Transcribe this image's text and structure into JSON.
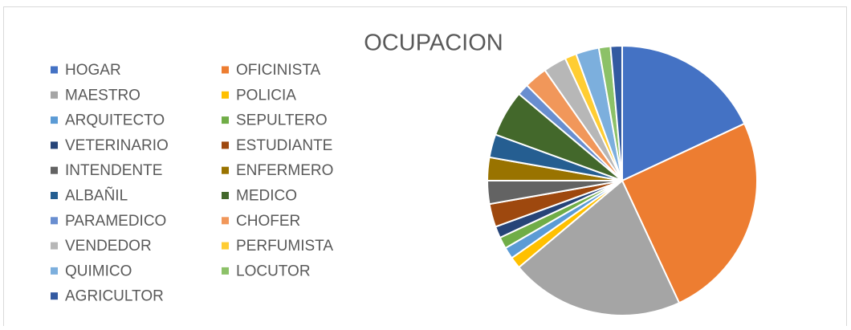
{
  "chart_data": {
    "type": "pie",
    "title": "OCUPACION",
    "categories": [
      "HOGAR",
      "OFICINISTA",
      "MAESTRO",
      "POLICIA",
      "ARQUITECTO",
      "SEPULTERO",
      "VETERINARIO",
      "ESTUDIANTE",
      "INTENDENTE",
      "ENFERMERO",
      "ALBAÑIL",
      "MEDICO",
      "PARAMEDICO",
      "CHOFER",
      "VENDEDOR",
      "PERFUMISTA",
      "QUIMICO",
      "LOCUTOR",
      "AGRICULTOR"
    ],
    "values": [
      13,
      18,
      15,
      1,
      1,
      1,
      1,
      2,
      2,
      2,
      2,
      4,
      1,
      2,
      2,
      1,
      2,
      1,
      1
    ],
    "colors": [
      "#4472c4",
      "#ed7d31",
      "#a5a5a5",
      "#ffc000",
      "#5b9bd5",
      "#70ad47",
      "#264478",
      "#9e480e",
      "#636363",
      "#997300",
      "#255e91",
      "#43682b",
      "#698ed0",
      "#f1975a",
      "#b7b7b7",
      "#ffcd33",
      "#7cafdd",
      "#8cc168",
      "#335aa1"
    ],
    "legend": "left"
  }
}
